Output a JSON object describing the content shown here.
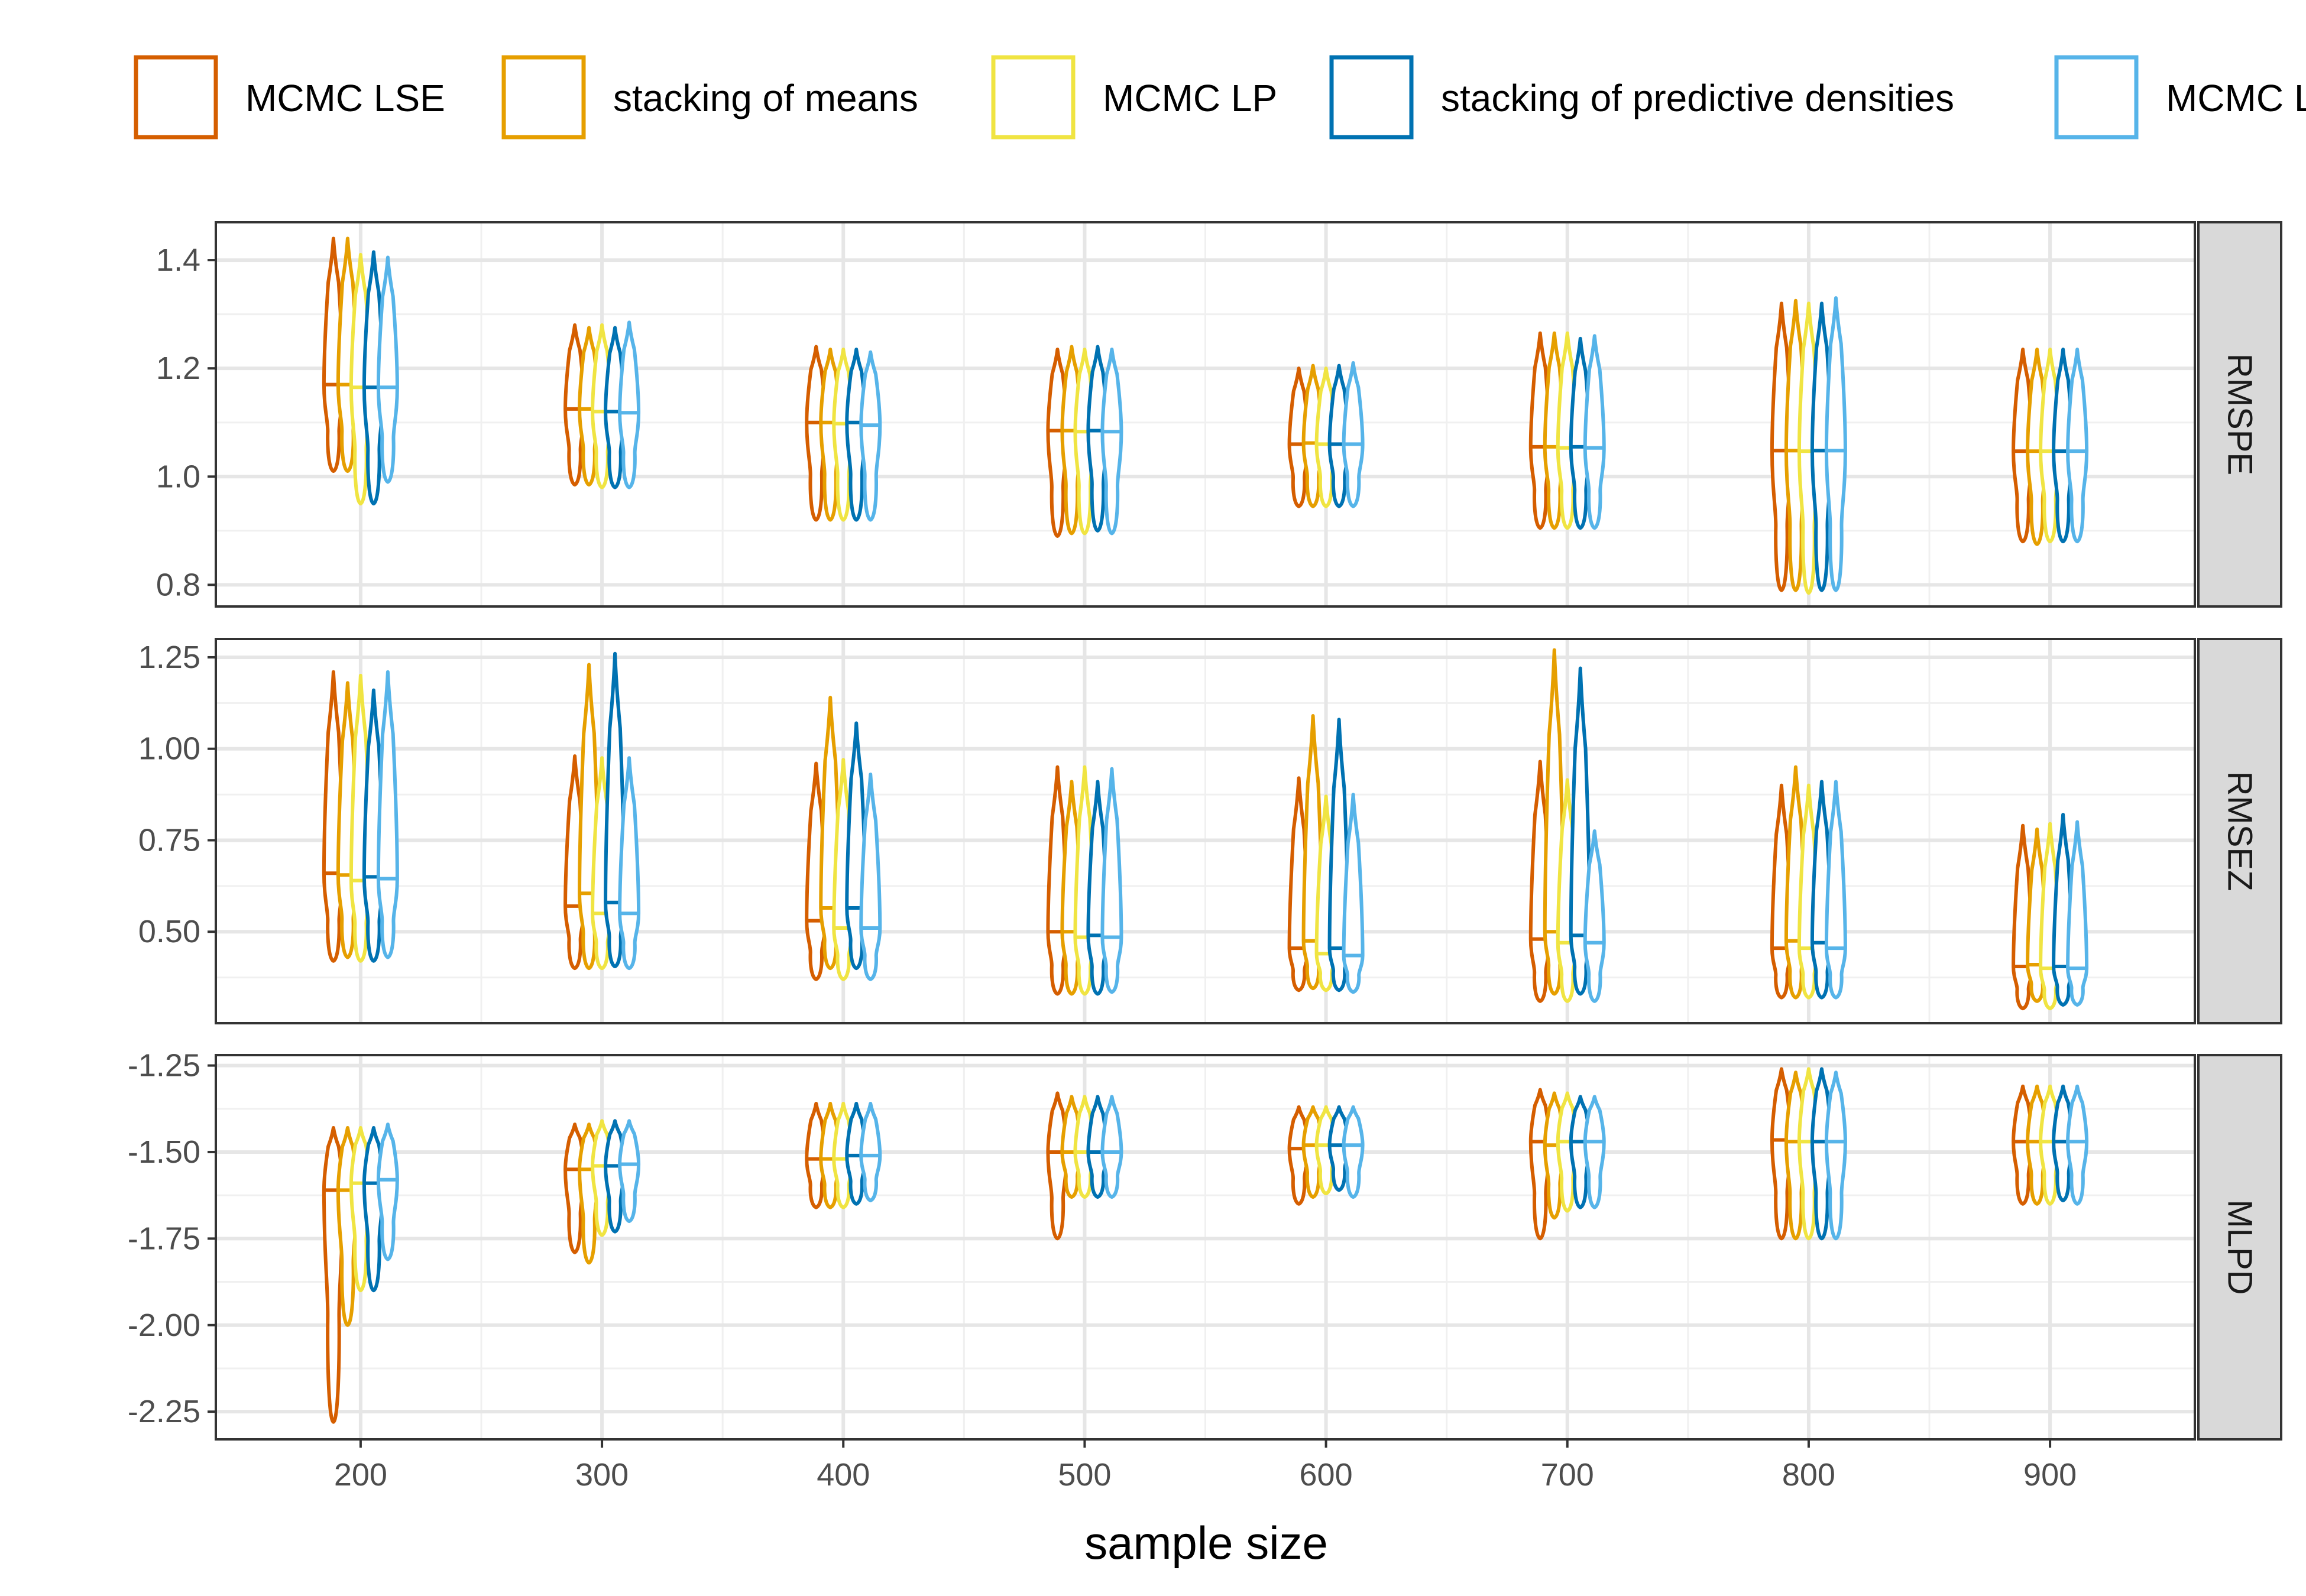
{
  "chart_data": {
    "type": "violin",
    "xlabel": "sample size",
    "x": [
      200,
      300,
      400,
      500,
      600,
      700,
      800,
      900
    ],
    "xticks": [
      "200",
      "300",
      "400",
      "500",
      "600",
      "700",
      "800",
      "900"
    ],
    "xlim": [
      140,
      960
    ],
    "legend_position": "top",
    "series": [
      {
        "name": "MCMC LSE",
        "color": "#D55E00"
      },
      {
        "name": "stacking of means",
        "color": "#E69F00"
      },
      {
        "name": "MCMC LP",
        "color": "#F0E442"
      },
      {
        "name": "stacking of predictive densities",
        "color": "#0072B2"
      },
      {
        "name": "MCMC LP",
        "color": "#56B4E9"
      }
    ],
    "panels": [
      {
        "label": "RMSPE",
        "ylim": [
          0.76,
          1.47
        ],
        "yticks": [
          0.8,
          1.0,
          1.2,
          1.4
        ],
        "ytick_labels": [
          "0.8",
          "1.0",
          "1.2",
          "1.4"
        ],
        "groups": [
          {
            "x": 200,
            "violins": [
              {
                "min": 1.01,
                "max": 1.44,
                "median": 1.17
              },
              {
                "min": 1.01,
                "max": 1.44,
                "median": 1.17
              },
              {
                "min": 0.95,
                "max": 1.41,
                "median": 1.165
              },
              {
                "min": 0.95,
                "max": 1.415,
                "median": 1.165
              },
              {
                "min": 0.99,
                "max": 1.405,
                "median": 1.165
              }
            ]
          },
          {
            "x": 300,
            "violins": [
              {
                "min": 0.985,
                "max": 1.28,
                "median": 1.125
              },
              {
                "min": 0.985,
                "max": 1.275,
                "median": 1.125
              },
              {
                "min": 0.98,
                "max": 1.28,
                "median": 1.12
              },
              {
                "min": 0.98,
                "max": 1.275,
                "median": 1.12
              },
              {
                "min": 0.98,
                "max": 1.285,
                "median": 1.118
              }
            ]
          },
          {
            "x": 400,
            "violins": [
              {
                "min": 0.92,
                "max": 1.24,
                "median": 1.1
              },
              {
                "min": 0.92,
                "max": 1.235,
                "median": 1.1
              },
              {
                "min": 0.92,
                "max": 1.235,
                "median": 1.098
              },
              {
                "min": 0.92,
                "max": 1.235,
                "median": 1.1
              },
              {
                "min": 0.92,
                "max": 1.23,
                "median": 1.095
              }
            ]
          },
          {
            "x": 500,
            "violins": [
              {
                "min": 0.89,
                "max": 1.235,
                "median": 1.085
              },
              {
                "min": 0.895,
                "max": 1.24,
                "median": 1.085
              },
              {
                "min": 0.895,
                "max": 1.235,
                "median": 1.083
              },
              {
                "min": 0.9,
                "max": 1.24,
                "median": 1.085
              },
              {
                "min": 0.895,
                "max": 1.235,
                "median": 1.083
              }
            ]
          },
          {
            "x": 600,
            "violins": [
              {
                "min": 0.945,
                "max": 1.2,
                "median": 1.06
              },
              {
                "min": 0.945,
                "max": 1.205,
                "median": 1.062
              },
              {
                "min": 0.945,
                "max": 1.2,
                "median": 1.06
              },
              {
                "min": 0.945,
                "max": 1.205,
                "median": 1.06
              },
              {
                "min": 0.945,
                "max": 1.21,
                "median": 1.06
              }
            ]
          },
          {
            "x": 700,
            "violins": [
              {
                "min": 0.905,
                "max": 1.265,
                "median": 1.055
              },
              {
                "min": 0.905,
                "max": 1.265,
                "median": 1.055
              },
              {
                "min": 0.905,
                "max": 1.265,
                "median": 1.053
              },
              {
                "min": 0.905,
                "max": 1.255,
                "median": 1.055
              },
              {
                "min": 0.905,
                "max": 1.26,
                "median": 1.053
              }
            ]
          },
          {
            "x": 800,
            "violins": [
              {
                "min": 0.79,
                "max": 1.32,
                "median": 1.048
              },
              {
                "min": 0.79,
                "max": 1.325,
                "median": 1.048
              },
              {
                "min": 0.785,
                "max": 1.32,
                "median": 1.047
              },
              {
                "min": 0.79,
                "max": 1.32,
                "median": 1.048
              },
              {
                "min": 0.79,
                "max": 1.33,
                "median": 1.048
              }
            ]
          },
          {
            "x": 900,
            "violins": [
              {
                "min": 0.88,
                "max": 1.235,
                "median": 1.047
              },
              {
                "min": 0.875,
                "max": 1.235,
                "median": 1.047
              },
              {
                "min": 0.88,
                "max": 1.235,
                "median": 1.047
              },
              {
                "min": 0.88,
                "max": 1.235,
                "median": 1.047
              },
              {
                "min": 0.88,
                "max": 1.235,
                "median": 1.047
              }
            ]
          }
        ]
      },
      {
        "label": "RMSEZ",
        "ylim": [
          0.25,
          1.3
        ],
        "yticks": [
          0.5,
          0.75,
          1.0,
          1.25
        ],
        "ytick_labels": [
          "0.50",
          "0.75",
          "1.00",
          "1.25"
        ],
        "groups": [
          {
            "x": 200,
            "violins": [
              {
                "min": 0.42,
                "max": 1.21,
                "median": 0.66
              },
              {
                "min": 0.43,
                "max": 1.18,
                "median": 0.655
              },
              {
                "min": 0.42,
                "max": 1.2,
                "median": 0.64
              },
              {
                "min": 0.42,
                "max": 1.16,
                "median": 0.65
              },
              {
                "min": 0.43,
                "max": 1.21,
                "median": 0.645
              }
            ]
          },
          {
            "x": 300,
            "violins": [
              {
                "min": 0.4,
                "max": 0.98,
                "median": 0.57
              },
              {
                "min": 0.4,
                "max": 1.23,
                "median": 0.605
              },
              {
                "min": 0.4,
                "max": 0.975,
                "median": 0.55
              },
              {
                "min": 0.405,
                "max": 1.26,
                "median": 0.58
              },
              {
                "min": 0.4,
                "max": 0.975,
                "median": 0.55
              }
            ]
          },
          {
            "x": 400,
            "violins": [
              {
                "min": 0.37,
                "max": 0.96,
                "median": 0.53
              },
              {
                "min": 0.4,
                "max": 1.14,
                "median": 0.565
              },
              {
                "min": 0.37,
                "max": 0.97,
                "median": 0.51
              },
              {
                "min": 0.4,
                "max": 1.07,
                "median": 0.565
              },
              {
                "min": 0.37,
                "max": 0.93,
                "median": 0.51
              }
            ]
          },
          {
            "x": 500,
            "violins": [
              {
                "min": 0.33,
                "max": 0.95,
                "median": 0.5
              },
              {
                "min": 0.33,
                "max": 0.91,
                "median": 0.5
              },
              {
                "min": 0.33,
                "max": 0.95,
                "median": 0.485
              },
              {
                "min": 0.33,
                "max": 0.91,
                "median": 0.49
              },
              {
                "min": 0.335,
                "max": 0.945,
                "median": 0.485
              }
            ]
          },
          {
            "x": 600,
            "violins": [
              {
                "min": 0.34,
                "max": 0.92,
                "median": 0.455
              },
              {
                "min": 0.345,
                "max": 1.09,
                "median": 0.475
              },
              {
                "min": 0.34,
                "max": 0.87,
                "median": 0.44
              },
              {
                "min": 0.34,
                "max": 1.08,
                "median": 0.455
              },
              {
                "min": 0.335,
                "max": 0.875,
                "median": 0.435
              }
            ]
          },
          {
            "x": 700,
            "violins": [
              {
                "min": 0.31,
                "max": 0.965,
                "median": 0.48
              },
              {
                "min": 0.33,
                "max": 1.27,
                "median": 0.5
              },
              {
                "min": 0.31,
                "max": 0.915,
                "median": 0.47
              },
              {
                "min": 0.33,
                "max": 1.22,
                "median": 0.49
              },
              {
                "min": 0.31,
                "max": 0.775,
                "median": 0.47
              }
            ]
          },
          {
            "x": 800,
            "violins": [
              {
                "min": 0.32,
                "max": 0.9,
                "median": 0.455
              },
              {
                "min": 0.32,
                "max": 0.95,
                "median": 0.475
              },
              {
                "min": 0.32,
                "max": 0.9,
                "median": 0.455
              },
              {
                "min": 0.32,
                "max": 0.91,
                "median": 0.47
              },
              {
                "min": 0.32,
                "max": 0.91,
                "median": 0.455
              }
            ]
          },
          {
            "x": 900,
            "violins": [
              {
                "min": 0.29,
                "max": 0.79,
                "median": 0.405
              },
              {
                "min": 0.31,
                "max": 0.78,
                "median": 0.41
              },
              {
                "min": 0.29,
                "max": 0.795,
                "median": 0.4
              },
              {
                "min": 0.3,
                "max": 0.82,
                "median": 0.405
              },
              {
                "min": 0.3,
                "max": 0.8,
                "median": 0.4
              }
            ]
          }
        ]
      },
      {
        "label": "MLPD",
        "ylim": [
          -2.33,
          -1.22
        ],
        "yticks": [
          -2.25,
          -2.0,
          -1.75,
          -1.5,
          -1.25
        ],
        "ytick_labels": [
          "-2.25",
          "-2.00",
          "-1.75",
          "-1.50",
          "-1.25"
        ],
        "groups": [
          {
            "x": 200,
            "violins": [
              {
                "min": -2.28,
                "max": -1.43,
                "median": -1.61
              },
              {
                "min": -2.0,
                "max": -1.43,
                "median": -1.61
              },
              {
                "min": -1.9,
                "max": -1.43,
                "median": -1.59
              },
              {
                "min": -1.9,
                "max": -1.43,
                "median": -1.59
              },
              {
                "min": -1.81,
                "max": -1.42,
                "median": -1.58
              }
            ]
          },
          {
            "x": 300,
            "violins": [
              {
                "min": -1.79,
                "max": -1.42,
                "median": -1.55
              },
              {
                "min": -1.82,
                "max": -1.42,
                "median": -1.55
              },
              {
                "min": -1.74,
                "max": -1.41,
                "median": -1.54
              },
              {
                "min": -1.73,
                "max": -1.41,
                "median": -1.54
              },
              {
                "min": -1.7,
                "max": -1.41,
                "median": -1.535
              }
            ]
          },
          {
            "x": 400,
            "violins": [
              {
                "min": -1.66,
                "max": -1.36,
                "median": -1.52
              },
              {
                "min": -1.66,
                "max": -1.36,
                "median": -1.52
              },
              {
                "min": -1.66,
                "max": -1.36,
                "median": -1.52
              },
              {
                "min": -1.65,
                "max": -1.36,
                "median": -1.51
              },
              {
                "min": -1.64,
                "max": -1.36,
                "median": -1.51
              }
            ]
          },
          {
            "x": 500,
            "violins": [
              {
                "min": -1.75,
                "max": -1.33,
                "median": -1.5
              },
              {
                "min": -1.63,
                "max": -1.34,
                "median": -1.5
              },
              {
                "min": -1.63,
                "max": -1.34,
                "median": -1.5
              },
              {
                "min": -1.63,
                "max": -1.34,
                "median": -1.5
              },
              {
                "min": -1.63,
                "max": -1.34,
                "median": -1.5
              }
            ]
          },
          {
            "x": 600,
            "violins": [
              {
                "min": -1.65,
                "max": -1.37,
                "median": -1.49
              },
              {
                "min": -1.63,
                "max": -1.37,
                "median": -1.48
              },
              {
                "min": -1.62,
                "max": -1.37,
                "median": -1.48
              },
              {
                "min": -1.61,
                "max": -1.37,
                "median": -1.48
              },
              {
                "min": -1.63,
                "max": -1.37,
                "median": -1.48
              }
            ]
          },
          {
            "x": 700,
            "violins": [
              {
                "min": -1.75,
                "max": -1.32,
                "median": -1.47
              },
              {
                "min": -1.69,
                "max": -1.33,
                "median": -1.48
              },
              {
                "min": -1.67,
                "max": -1.33,
                "median": -1.47
              },
              {
                "min": -1.66,
                "max": -1.34,
                "median": -1.47
              },
              {
                "min": -1.66,
                "max": -1.34,
                "median": -1.47
              }
            ]
          },
          {
            "x": 800,
            "violins": [
              {
                "min": -1.75,
                "max": -1.26,
                "median": -1.465
              },
              {
                "min": -1.75,
                "max": -1.27,
                "median": -1.47
              },
              {
                "min": -1.75,
                "max": -1.26,
                "median": -1.47
              },
              {
                "min": -1.75,
                "max": -1.26,
                "median": -1.47
              },
              {
                "min": -1.75,
                "max": -1.27,
                "median": -1.47
              }
            ]
          },
          {
            "x": 900,
            "violins": [
              {
                "min": -1.65,
                "max": -1.31,
                "median": -1.47
              },
              {
                "min": -1.65,
                "max": -1.31,
                "median": -1.47
              },
              {
                "min": -1.65,
                "max": -1.31,
                "median": -1.47
              },
              {
                "min": -1.64,
                "max": -1.31,
                "median": -1.47
              },
              {
                "min": -1.65,
                "max": -1.31,
                "median": -1.47
              }
            ]
          }
        ]
      }
    ]
  }
}
